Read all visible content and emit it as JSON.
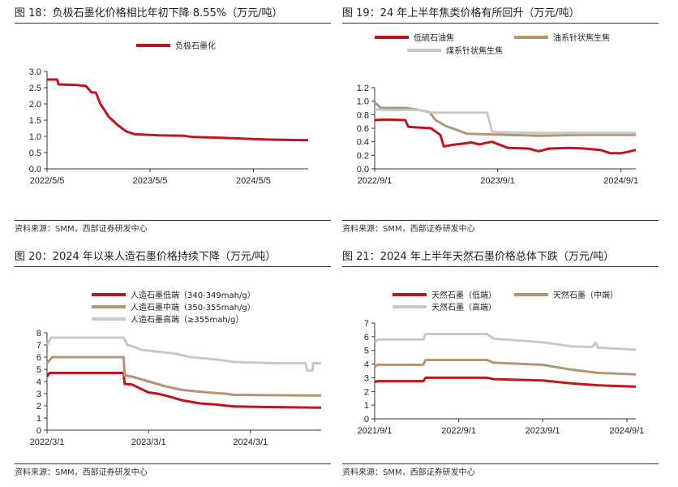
{
  "source_text": "资料来源：SMM，西部证券研发中心",
  "charts": [
    {
      "title": "图 18：负极石墨化价格相比年初下降 8.55%（万元/吨）",
      "type": "line",
      "y_ticks": [
        "0.0",
        "0.5",
        "1.0",
        "1.5",
        "2.0",
        "2.5",
        "3.0"
      ],
      "ylim": [
        0,
        3.0
      ],
      "x_range": [
        "2022-05-05",
        "2024-11-15"
      ],
      "x_ticks": [
        {
          "label": "2022/5/5",
          "date": "2022-05-05"
        },
        {
          "label": "2023/5/5",
          "date": "2023-05-05"
        },
        {
          "label": "2024/5/5",
          "date": "2024-05-05"
        }
      ],
      "legend": "top-center",
      "series": [
        {
          "name": "负极石墨化",
          "color": "#c0141e",
          "points": [
            [
              "2022-05-05",
              2.75
            ],
            [
              "2022-06-10",
              2.75
            ],
            [
              "2022-06-15",
              2.6
            ],
            [
              "2022-08-20",
              2.58
            ],
            [
              "2022-09-20",
              2.55
            ],
            [
              "2022-10-10",
              2.35
            ],
            [
              "2022-10-25",
              2.35
            ],
            [
              "2022-11-10",
              2.0
            ],
            [
              "2022-12-10",
              1.6
            ],
            [
              "2023-01-10",
              1.35
            ],
            [
              "2023-02-10",
              1.15
            ],
            [
              "2023-03-10",
              1.07
            ],
            [
              "2023-04-20",
              1.05
            ],
            [
              "2023-06-01",
              1.03
            ],
            [
              "2023-09-01",
              1.02
            ],
            [
              "2023-10-01",
              0.98
            ],
            [
              "2024-01-01",
              0.96
            ],
            [
              "2024-03-01",
              0.94
            ],
            [
              "2024-05-01",
              0.92
            ],
            [
              "2024-07-01",
              0.9
            ],
            [
              "2024-09-01",
              0.89
            ],
            [
              "2024-11-15",
              0.88
            ]
          ]
        }
      ]
    },
    {
      "title": "图 19：24 年上半年焦类价格有所回升（万元/吨）",
      "type": "line",
      "y_ticks": [
        "0.0",
        "0.2",
        "0.4",
        "0.6",
        "0.8",
        "1.0",
        "1.2"
      ],
      "ylim": [
        0,
        1.2
      ],
      "x_range": [
        "2022-09-01",
        "2024-10-15"
      ],
      "x_ticks": [
        {
          "label": "2022/9/1",
          "date": "2022-09-01"
        },
        {
          "label": "2023/9/1",
          "date": "2023-09-01"
        },
        {
          "label": "2024/9/1",
          "date": "2024-09-01"
        }
      ],
      "legend": "top",
      "series": [
        {
          "name": "低硫石油焦",
          "color": "#c0141e",
          "points": [
            [
              "2022-09-01",
              0.72
            ],
            [
              "2022-10-01",
              0.73
            ],
            [
              "2022-12-01",
              0.72
            ],
            [
              "2022-12-10",
              0.62
            ],
            [
              "2023-02-15",
              0.6
            ],
            [
              "2023-03-01",
              0.55
            ],
            [
              "2023-03-15",
              0.5
            ],
            [
              "2023-03-25",
              0.33
            ],
            [
              "2023-04-15",
              0.35
            ],
            [
              "2023-05-15",
              0.37
            ],
            [
              "2023-06-15",
              0.39
            ],
            [
              "2023-07-10",
              0.36
            ],
            [
              "2023-07-25",
              0.38
            ],
            [
              "2023-08-15",
              0.4
            ],
            [
              "2023-09-10",
              0.35
            ],
            [
              "2023-10-01",
              0.31
            ],
            [
              "2023-12-01",
              0.3
            ],
            [
              "2024-01-01",
              0.26
            ],
            [
              "2024-02-01",
              0.3
            ],
            [
              "2024-04-01",
              0.31
            ],
            [
              "2024-05-15",
              0.3
            ],
            [
              "2024-07-01",
              0.28
            ],
            [
              "2024-08-01",
              0.23
            ],
            [
              "2024-09-01",
              0.23
            ],
            [
              "2024-09-20",
              0.25
            ],
            [
              "2024-10-15",
              0.28
            ]
          ]
        },
        {
          "name": "油系针状焦生焦",
          "color": "#b59473",
          "points": [
            [
              "2022-09-01",
              0.98
            ],
            [
              "2022-09-20",
              0.9
            ],
            [
              "2022-12-01",
              0.9
            ],
            [
              "2023-01-01",
              0.88
            ],
            [
              "2023-02-10",
              0.84
            ],
            [
              "2023-03-01",
              0.72
            ],
            [
              "2023-04-01",
              0.63
            ],
            [
              "2023-05-01",
              0.58
            ],
            [
              "2023-06-01",
              0.52
            ],
            [
              "2023-08-01",
              0.51
            ],
            [
              "2024-01-01",
              0.49
            ],
            [
              "2024-05-01",
              0.5
            ],
            [
              "2024-10-15",
              0.5
            ]
          ]
        },
        {
          "name": "煤系针状焦生焦",
          "color": "#c8c8c8",
          "points": [
            [
              "2022-09-01",
              0.88
            ],
            [
              "2022-10-01",
              0.87
            ],
            [
              "2023-01-15",
              0.87
            ],
            [
              "2023-02-01",
              0.84
            ],
            [
              "2023-03-01",
              0.83
            ],
            [
              "2023-08-01",
              0.83
            ],
            [
              "2023-08-15",
              0.55
            ],
            [
              "2023-09-01",
              0.54
            ],
            [
              "2024-01-01",
              0.53
            ],
            [
              "2024-10-15",
              0.53
            ]
          ]
        }
      ]
    },
    {
      "title": "图 20：2024 年以来人造石墨价格持续下降（万元/吨）",
      "type": "line",
      "y_ticks": [
        "0",
        "1",
        "2",
        "3",
        "4",
        "5",
        "6",
        "7",
        "8"
      ],
      "ylim": [
        0,
        8
      ],
      "x_range": [
        "2022-03-01",
        "2024-11-10"
      ],
      "x_ticks": [
        {
          "label": "2022/3/1",
          "date": "2022-03-01"
        },
        {
          "label": "2023/3/1",
          "date": "2023-03-01"
        },
        {
          "label": "2024/3/1",
          "date": "2024-03-01"
        }
      ],
      "legend": "top-left",
      "series": [
        {
          "name": "人造石墨低端（340-349mah/g）",
          "color": "#c0141e",
          "points": [
            [
              "2022-03-01",
              4.4
            ],
            [
              "2022-03-10",
              4.7
            ],
            [
              "2022-12-01",
              4.7
            ],
            [
              "2022-12-05",
              3.8
            ],
            [
              "2023-01-01",
              3.75
            ],
            [
              "2023-02-01",
              3.4
            ],
            [
              "2023-03-01",
              3.1
            ],
            [
              "2023-04-01",
              3.0
            ],
            [
              "2023-05-01",
              2.85
            ],
            [
              "2023-07-01",
              2.45
            ],
            [
              "2023-09-01",
              2.2
            ],
            [
              "2023-11-01",
              2.1
            ],
            [
              "2024-01-01",
              1.95
            ],
            [
              "2024-05-01",
              1.9
            ],
            [
              "2024-11-10",
              1.85
            ]
          ]
        },
        {
          "name": "人造石墨中端（350-355mah/g）",
          "color": "#b59473",
          "points": [
            [
              "2022-03-01",
              5.5
            ],
            [
              "2022-03-20",
              6.0
            ],
            [
              "2022-12-01",
              6.0
            ],
            [
              "2022-12-05",
              4.5
            ],
            [
              "2023-01-01",
              4.4
            ],
            [
              "2023-03-01",
              4.0
            ],
            [
              "2023-05-01",
              3.6
            ],
            [
              "2023-07-01",
              3.3
            ],
            [
              "2023-10-01",
              3.1
            ],
            [
              "2023-12-01",
              3.0
            ],
            [
              "2024-01-01",
              2.9
            ],
            [
              "2024-11-10",
              2.85
            ]
          ]
        },
        {
          "name": "人造石墨高端（≥355mah/g）",
          "color": "#c8c8c8",
          "points": [
            [
              "2022-03-01",
              7.0
            ],
            [
              "2022-03-15",
              7.6
            ],
            [
              "2022-12-01",
              7.6
            ],
            [
              "2022-12-15",
              7.0
            ],
            [
              "2023-01-15",
              6.8
            ],
            [
              "2023-02-01",
              6.6
            ],
            [
              "2023-06-01",
              6.3
            ],
            [
              "2023-08-01",
              6.0
            ],
            [
              "2023-11-01",
              5.8
            ],
            [
              "2024-01-01",
              5.6
            ],
            [
              "2024-06-01",
              5.5
            ],
            [
              "2024-09-15",
              5.5
            ],
            [
              "2024-09-20",
              4.9
            ],
            [
              "2024-10-10",
              4.9
            ],
            [
              "2024-10-12",
              5.5
            ],
            [
              "2024-11-10",
              5.5
            ]
          ]
        }
      ]
    },
    {
      "title": "图 21：2024 年上半年天然石墨价格总体下跌（万元/吨）",
      "type": "line",
      "y_ticks": [
        "0",
        "1",
        "2",
        "3",
        "4",
        "5",
        "6",
        "7"
      ],
      "ylim": [
        0,
        7
      ],
      "x_range": [
        "2021-09-01",
        "2024-10-10"
      ],
      "x_ticks": [
        {
          "label": "2021/9/1",
          "date": "2021-09-01"
        },
        {
          "label": "2022/9/1",
          "date": "2022-09-01"
        },
        {
          "label": "2023/9/1",
          "date": "2023-09-01"
        },
        {
          "label": "2024/9/1",
          "date": "2024-09-01"
        }
      ],
      "legend": "top-left",
      "series": [
        {
          "name": "天然石墨（低端）",
          "color": "#c0141e",
          "points": [
            [
              "2021-09-01",
              2.7
            ],
            [
              "2021-09-15",
              2.75
            ],
            [
              "2022-04-01",
              2.75
            ],
            [
              "2022-04-10",
              3.0
            ],
            [
              "2023-01-01",
              3.0
            ],
            [
              "2023-02-01",
              2.9
            ],
            [
              "2023-09-01",
              2.8
            ],
            [
              "2024-01-01",
              2.6
            ],
            [
              "2024-05-01",
              2.45
            ],
            [
              "2024-10-10",
              2.35
            ]
          ]
        },
        {
          "name": "天然石墨（中端）",
          "color": "#b59473",
          "points": [
            [
              "2021-09-01",
              3.8
            ],
            [
              "2021-09-15",
              3.95
            ],
            [
              "2022-04-01",
              3.95
            ],
            [
              "2022-04-10",
              4.3
            ],
            [
              "2023-01-01",
              4.3
            ],
            [
              "2023-02-01",
              4.1
            ],
            [
              "2023-09-01",
              3.95
            ],
            [
              "2024-01-01",
              3.6
            ],
            [
              "2024-05-01",
              3.35
            ],
            [
              "2024-10-10",
              3.25
            ]
          ]
        },
        {
          "name": "天然石墨（高端）",
          "color": "#c8c8c8",
          "points": [
            [
              "2021-09-01",
              5.6
            ],
            [
              "2021-09-15",
              5.8
            ],
            [
              "2022-04-01",
              5.8
            ],
            [
              "2022-04-10",
              6.2
            ],
            [
              "2023-01-01",
              6.2
            ],
            [
              "2023-02-01",
              5.85
            ],
            [
              "2023-09-01",
              5.6
            ],
            [
              "2024-01-01",
              5.3
            ],
            [
              "2024-04-01",
              5.25
            ],
            [
              "2024-04-20",
              5.55
            ],
            [
              "2024-04-28",
              5.2
            ],
            [
              "2024-10-10",
              5.05
            ]
          ]
        }
      ]
    }
  ]
}
